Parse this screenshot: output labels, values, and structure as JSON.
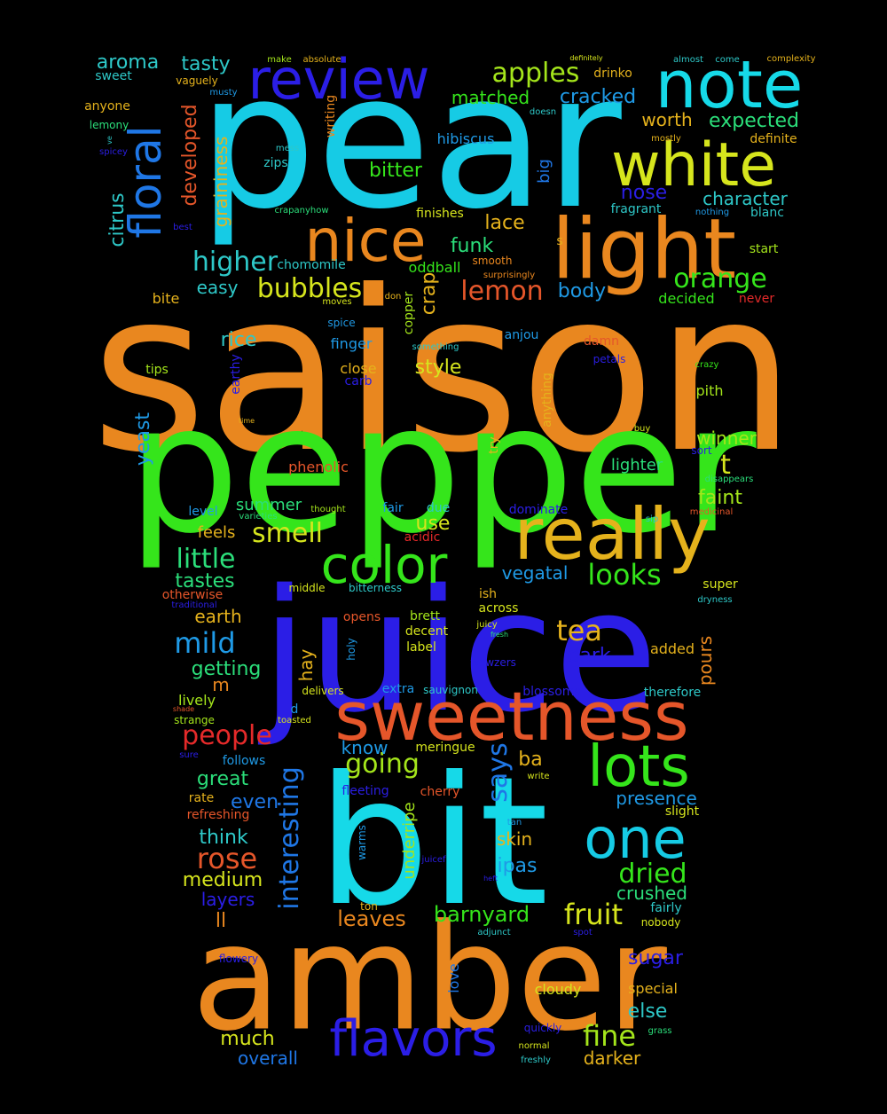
{
  "words": [
    {
      "text": "saison",
      "color": "#e9871f",
      "v": false
    },
    {
      "text": "pepper",
      "color": "#35e51b",
      "v": false
    },
    {
      "text": "pear",
      "color": "#16cbe5",
      "v": false
    },
    {
      "text": "juice",
      "color": "#2b1ee6",
      "v": false
    },
    {
      "text": "bit",
      "color": "#16d9e8",
      "v": false
    },
    {
      "text": "amber",
      "color": "#e9871f",
      "v": false
    },
    {
      "text": "light",
      "color": "#e9871f",
      "v": false
    },
    {
      "text": "really",
      "color": "#e5b21c",
      "v": false
    },
    {
      "text": "sweetness",
      "color": "#e5562a",
      "v": false
    },
    {
      "text": "white",
      "color": "#d6e51d",
      "v": false
    },
    {
      "text": "note",
      "color": "#16d9e8",
      "v": false
    },
    {
      "text": "nice",
      "color": "#e9871f",
      "v": false
    },
    {
      "text": "review",
      "color": "#2b1ee6",
      "v": false
    },
    {
      "text": "color",
      "color": "#35e51b",
      "v": false
    },
    {
      "text": "lots",
      "color": "#35e51b",
      "v": false
    },
    {
      "text": "one",
      "color": "#16cbe5",
      "v": false
    },
    {
      "text": "flavors",
      "color": "#2b1ee6",
      "v": false
    },
    {
      "text": "floral",
      "color": "#1f77e6",
      "v": true
    },
    {
      "text": "interesting",
      "color": "#1f77e6",
      "v": true
    },
    {
      "text": "apples",
      "color": "#a4e51b",
      "v": false
    },
    {
      "text": "higher",
      "color": "#2ec8c8",
      "v": false
    },
    {
      "text": "bubbles",
      "color": "#d6e51d",
      "v": false
    },
    {
      "text": "smell",
      "color": "#d6e51d",
      "v": false
    },
    {
      "text": "little",
      "color": "#2bde7a",
      "v": false
    },
    {
      "text": "mild",
      "color": "#1f9ae6",
      "v": false
    },
    {
      "text": "orange",
      "color": "#35e51b",
      "v": false
    },
    {
      "text": "lemon",
      "color": "#e5562a",
      "v": false
    },
    {
      "text": "looks",
      "color": "#35e51b",
      "v": false
    },
    {
      "text": "tea",
      "color": "#e5b21c",
      "v": false
    },
    {
      "text": "going",
      "color": "#a4e51b",
      "v": false
    },
    {
      "text": "says",
      "color": "#1f77e6",
      "v": true
    },
    {
      "text": "people",
      "color": "#e52a2a",
      "v": false
    },
    {
      "text": "rose",
      "color": "#e5562a",
      "v": false
    },
    {
      "text": "dried",
      "color": "#35e51b",
      "v": false
    },
    {
      "text": "fruit",
      "color": "#d6e51d",
      "v": false
    },
    {
      "text": "fine",
      "color": "#a4e51b",
      "v": false
    },
    {
      "text": "barnyard",
      "color": "#35e51b",
      "v": false
    },
    {
      "text": "leaves",
      "color": "#e9871f",
      "v": false
    },
    {
      "text": "aroma",
      "color": "#2ec8c8",
      "v": false
    },
    {
      "text": "tasty",
      "color": "#2ec8c8",
      "v": false
    },
    {
      "text": "developed",
      "color": "#e5562a",
      "v": true
    },
    {
      "text": "graininess",
      "color": "#e5b21c",
      "v": true
    },
    {
      "text": "citrus",
      "color": "#2ec8c8",
      "v": true
    },
    {
      "text": "matched",
      "color": "#35e51b",
      "v": false
    },
    {
      "text": "cracked",
      "color": "#1f9ae6",
      "v": false
    },
    {
      "text": "worth",
      "color": "#e5b21c",
      "v": false
    },
    {
      "text": "expected",
      "color": "#2bde7a",
      "v": false
    },
    {
      "text": "character",
      "color": "#2ec8c8",
      "v": false
    },
    {
      "text": "nose",
      "color": "#2b1ee6",
      "v": false
    },
    {
      "text": "bitter",
      "color": "#35e51b",
      "v": false
    },
    {
      "text": "lace",
      "color": "#e5b21c",
      "v": false
    },
    {
      "text": "funk",
      "color": "#2bde7a",
      "v": false
    },
    {
      "text": "easy",
      "color": "#2ec8c8",
      "v": false
    },
    {
      "text": "body",
      "color": "#1f9ae6",
      "v": false
    },
    {
      "text": "crap",
      "color": "#e5b21c",
      "v": true
    },
    {
      "text": "style",
      "color": "#d6e51d",
      "v": false
    },
    {
      "text": "rice",
      "color": "#2ec8c8",
      "v": false
    },
    {
      "text": "yeast",
      "color": "#1f9ae6",
      "v": true
    },
    {
      "text": "winner",
      "color": "#a4e51b",
      "v": false
    },
    {
      "text": "t",
      "color": "#d6e51d",
      "v": false
    },
    {
      "text": "lighter",
      "color": "#2bde7a",
      "v": false
    },
    {
      "text": "faint",
      "color": "#a4e51b",
      "v": false
    },
    {
      "text": "summer",
      "color": "#2bde7a",
      "v": false
    },
    {
      "text": "feels",
      "color": "#e5b21c",
      "v": false
    },
    {
      "text": "use",
      "color": "#d6e51d",
      "v": false
    },
    {
      "text": "vegatal",
      "color": "#1f9ae6",
      "v": false
    },
    {
      "text": "tastes",
      "color": "#2bde7a",
      "v": false
    },
    {
      "text": "earth",
      "color": "#e5b21c",
      "v": false
    },
    {
      "text": "getting",
      "color": "#2bde7a",
      "v": false
    },
    {
      "text": "hay",
      "color": "#e5b21c",
      "v": true
    },
    {
      "text": "m",
      "color": "#e9871f",
      "v": false
    },
    {
      "text": "dark",
      "color": "#2b1ee6",
      "v": false
    },
    {
      "text": "pours",
      "color": "#e9871f",
      "v": true
    },
    {
      "text": "added",
      "color": "#e5b21c",
      "v": false
    },
    {
      "text": "lively",
      "color": "#a4e51b",
      "v": false
    },
    {
      "text": "know",
      "color": "#1f9ae6",
      "v": false
    },
    {
      "text": "ba",
      "color": "#e5b21c",
      "v": false
    },
    {
      "text": "great",
      "color": "#2bde7a",
      "v": false
    },
    {
      "text": "presence",
      "color": "#1f9ae6",
      "v": false
    },
    {
      "text": "even",
      "color": "#1f77e6",
      "v": false
    },
    {
      "text": "think",
      "color": "#2ec8c8",
      "v": false
    },
    {
      "text": "skin",
      "color": "#e5b21c",
      "v": false
    },
    {
      "text": "ipas",
      "color": "#1f9ae6",
      "v": false
    },
    {
      "text": "crushed",
      "color": "#2bde7a",
      "v": false
    },
    {
      "text": "medium",
      "color": "#d6e51d",
      "v": false
    },
    {
      "text": "layers",
      "color": "#2b1ee6",
      "v": false
    },
    {
      "text": "ll",
      "color": "#e9871f",
      "v": false
    },
    {
      "text": "underripe",
      "color": "#a4e51b",
      "v": true
    },
    {
      "text": "sugar",
      "color": "#2b1ee6",
      "v": false
    },
    {
      "text": "else",
      "color": "#2ec8c8",
      "v": false
    },
    {
      "text": "cloudy",
      "color": "#d6e51d",
      "v": false
    },
    {
      "text": "special",
      "color": "#e5b21c",
      "v": false
    },
    {
      "text": "much",
      "color": "#d6e51d",
      "v": false
    },
    {
      "text": "overall",
      "color": "#1f77e6",
      "v": false
    },
    {
      "text": "darker",
      "color": "#e5b21c",
      "v": false
    },
    {
      "text": "love",
      "color": "#1f77e6",
      "v": true
    },
    {
      "text": "sweet",
      "color": "#2ec8c8",
      "v": false
    },
    {
      "text": "vaguely",
      "color": "#e5b21c",
      "v": false
    },
    {
      "text": "anyone",
      "color": "#e5b21c",
      "v": false
    },
    {
      "text": "lemony",
      "color": "#2bde7a",
      "v": false
    },
    {
      "text": "musty",
      "color": "#1f9ae6",
      "v": false
    },
    {
      "text": "writing",
      "color": "#e9871f",
      "v": true
    },
    {
      "text": "mess",
      "color": "#2ec8c8",
      "v": false
    },
    {
      "text": "zips",
      "color": "#2ec8c8",
      "v": false
    },
    {
      "text": "hibiscus",
      "color": "#1f9ae6",
      "v": false
    },
    {
      "text": "big",
      "color": "#1f77e6",
      "v": true
    },
    {
      "text": "drinko",
      "color": "#e5b21c",
      "v": false
    },
    {
      "text": "doesn",
      "color": "#2ec8c8",
      "v": false
    },
    {
      "text": "mostly",
      "color": "#e5b21c",
      "v": false
    },
    {
      "text": "definite",
      "color": "#e5b21c",
      "v": false
    },
    {
      "text": "fragrant",
      "color": "#2ec8c8",
      "v": false
    },
    {
      "text": "nothing",
      "color": "#1f9ae6",
      "v": false
    },
    {
      "text": "blanc",
      "color": "#2ec8c8",
      "v": false
    },
    {
      "text": "finishes",
      "color": "#d6e51d",
      "v": false
    },
    {
      "text": "s",
      "color": "#e5b21c",
      "v": false
    },
    {
      "text": "start",
      "color": "#a4e51b",
      "v": false
    },
    {
      "text": "smooth",
      "color": "#e9871f",
      "v": false
    },
    {
      "text": "chomomile",
      "color": "#2ec8c8",
      "v": false
    },
    {
      "text": "oddball",
      "color": "#35e51b",
      "v": false
    },
    {
      "text": "surprisingly",
      "color": "#e9871f",
      "v": false
    },
    {
      "text": "decided",
      "color": "#35e51b",
      "v": false
    },
    {
      "text": "never",
      "color": "#e52a2a",
      "v": false
    },
    {
      "text": "bite",
      "color": "#e5b21c",
      "v": false
    },
    {
      "text": "copper",
      "color": "#a4e51b",
      "v": true
    },
    {
      "text": "moves",
      "color": "#d6e51d",
      "v": false
    },
    {
      "text": "don",
      "color": "#e5b21c",
      "v": false
    },
    {
      "text": "spice",
      "color": "#1f9ae6",
      "v": false
    },
    {
      "text": "anjou",
      "color": "#1f9ae6",
      "v": false
    },
    {
      "text": "finger",
      "color": "#1f9ae6",
      "v": false
    },
    {
      "text": "something",
      "color": "#2ec8c8",
      "v": false
    },
    {
      "text": "damn",
      "color": "#e5562a",
      "v": false
    },
    {
      "text": "petals",
      "color": "#2b1ee6",
      "v": false
    },
    {
      "text": "tips",
      "color": "#a4e51b",
      "v": false
    },
    {
      "text": "earthy",
      "color": "#2b1ee6",
      "v": true
    },
    {
      "text": "close",
      "color": "#e5b21c",
      "v": false
    },
    {
      "text": "carb",
      "color": "#2b1ee6",
      "v": false
    },
    {
      "text": "anything",
      "color": "#e5b21c",
      "v": true
    },
    {
      "text": "crazy",
      "color": "#35e51b",
      "v": false
    },
    {
      "text": "pith",
      "color": "#a4e51b",
      "v": false
    },
    {
      "text": "time",
      "color": "#e5b21c",
      "v": false
    },
    {
      "text": "try",
      "color": "#e5b21c",
      "v": true
    },
    {
      "text": "buy",
      "color": "#d6e51d",
      "v": false
    },
    {
      "text": "phenolic",
      "color": "#e5562a",
      "v": false
    },
    {
      "text": "sort",
      "color": "#2b1ee6",
      "v": false
    },
    {
      "text": "disappears",
      "color": "#2bde7a",
      "v": false
    },
    {
      "text": "level",
      "color": "#1f9ae6",
      "v": false
    },
    {
      "text": "thought",
      "color": "#a4e51b",
      "v": false
    },
    {
      "text": "varieties",
      "color": "#2bde7a",
      "v": false
    },
    {
      "text": "fair",
      "color": "#1f9ae6",
      "v": false
    },
    {
      "text": "due",
      "color": "#2ec8c8",
      "v": false
    },
    {
      "text": "dominate",
      "color": "#2b1ee6",
      "v": false
    },
    {
      "text": "medicinal",
      "color": "#e5562a",
      "v": false
    },
    {
      "text": "sip",
      "color": "#2ec8c8",
      "v": false
    },
    {
      "text": "acidic",
      "color": "#e52a2a",
      "v": false
    },
    {
      "text": "otherwise",
      "color": "#e5562a",
      "v": false
    },
    {
      "text": "middle",
      "color": "#d6e51d",
      "v": false
    },
    {
      "text": "bitterness",
      "color": "#2ec8c8",
      "v": false
    },
    {
      "text": "ish",
      "color": "#e5b21c",
      "v": false
    },
    {
      "text": "super",
      "color": "#d6e51d",
      "v": false
    },
    {
      "text": "traditional",
      "color": "#2b1ee6",
      "v": false
    },
    {
      "text": "across",
      "color": "#d6e51d",
      "v": false
    },
    {
      "text": "dryness",
      "color": "#2ec8c8",
      "v": false
    },
    {
      "text": "opens",
      "color": "#e5562a",
      "v": false
    },
    {
      "text": "brett",
      "color": "#a4e51b",
      "v": false
    },
    {
      "text": "juicy",
      "color": "#d6e51d",
      "v": false
    },
    {
      "text": "decent",
      "color": "#d6e51d",
      "v": false
    },
    {
      "text": "fresh",
      "color": "#2bde7a",
      "v": false
    },
    {
      "text": "label",
      "color": "#d6e51d",
      "v": false
    },
    {
      "text": "holy",
      "color": "#1f9ae6",
      "v": true
    },
    {
      "text": "wowzers",
      "color": "#2b1ee6",
      "v": false
    },
    {
      "text": "delivers",
      "color": "#d6e51d",
      "v": false
    },
    {
      "text": "extra",
      "color": "#1f9ae6",
      "v": false
    },
    {
      "text": "sauvignon",
      "color": "#2ec8c8",
      "v": false
    },
    {
      "text": "blossoms",
      "color": "#2b1ee6",
      "v": false
    },
    {
      "text": "therefore",
      "color": "#2ec8c8",
      "v": false
    },
    {
      "text": "shade",
      "color": "#e5562a",
      "v": false
    },
    {
      "text": "d",
      "color": "#1f9ae6",
      "v": false
    },
    {
      "text": "strange",
      "color": "#a4e51b",
      "v": false
    },
    {
      "text": "toasted",
      "color": "#d6e51d",
      "v": false
    },
    {
      "text": "meringue",
      "color": "#d6e51d",
      "v": false
    },
    {
      "text": "sure",
      "color": "#2b1ee6",
      "v": false
    },
    {
      "text": "follows",
      "color": "#1f9ae6",
      "v": false
    },
    {
      "text": "write",
      "color": "#d6e51d",
      "v": false
    },
    {
      "text": "fleeting",
      "color": "#2b1ee6",
      "v": false
    },
    {
      "text": "cherry",
      "color": "#e5562a",
      "v": false
    },
    {
      "text": "rate",
      "color": "#e5b21c",
      "v": false
    },
    {
      "text": "refreshing",
      "color": "#e5562a",
      "v": false
    },
    {
      "text": "slight",
      "color": "#d6e51d",
      "v": false
    },
    {
      "text": "warms",
      "color": "#1f9ae6",
      "v": true
    },
    {
      "text": "tan",
      "color": "#1f9ae6",
      "v": false
    },
    {
      "text": "juicef",
      "color": "#2b1ee6",
      "v": false
    },
    {
      "text": "heft",
      "color": "#2b1ee6",
      "v": false
    },
    {
      "text": "ton",
      "color": "#e5b21c",
      "v": false
    },
    {
      "text": "fairly",
      "color": "#2ec8c8",
      "v": false
    },
    {
      "text": "nobody",
      "color": "#d6e51d",
      "v": false
    },
    {
      "text": "adjunct",
      "color": "#2ec8c8",
      "v": false
    },
    {
      "text": "spot",
      "color": "#2b1ee6",
      "v": false
    },
    {
      "text": "flowery",
      "color": "#2b1ee6",
      "v": false
    },
    {
      "text": "quickly",
      "color": "#2b1ee6",
      "v": false
    },
    {
      "text": "grass",
      "color": "#2bde7a",
      "v": false
    },
    {
      "text": "normal",
      "color": "#d6e51d",
      "v": false
    },
    {
      "text": "freshly",
      "color": "#2ec8c8",
      "v": false
    },
    {
      "text": "make",
      "color": "#a4e51b",
      "v": false
    },
    {
      "text": "absolute",
      "color": "#e5b21c",
      "v": false
    },
    {
      "text": "definitely",
      "color": "#d6e51d",
      "v": false
    },
    {
      "text": "almost",
      "color": "#2ec8c8",
      "v": false
    },
    {
      "text": "come",
      "color": "#2ec8c8",
      "v": false
    },
    {
      "text": "complexity",
      "color": "#e5b21c",
      "v": false
    },
    {
      "text": "ve",
      "color": "#2ec8c8",
      "v": true
    },
    {
      "text": "spicey",
      "color": "#2b1ee6",
      "v": false
    },
    {
      "text": "crapanyhow",
      "color": "#2bde7a",
      "v": false
    },
    {
      "text": "best",
      "color": "#2b1ee6",
      "v": false
    }
  ]
}
